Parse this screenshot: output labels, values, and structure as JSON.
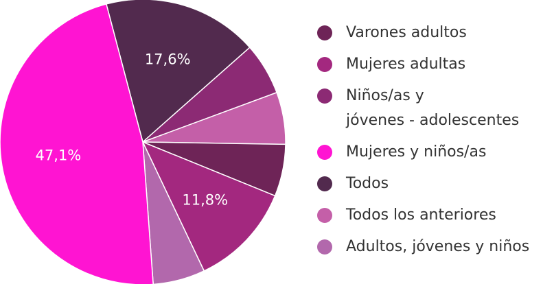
{
  "chart_data": {
    "type": "pie",
    "categories": [
      "Varones adultos",
      "Mujeres adultas",
      "Niños/as y\njóvenes - adolescentes",
      "Mujeres y niños/as",
      "Todos",
      "Todos los anteriores",
      "Adultos, jóvenes y niños"
    ],
    "values": [
      5.9,
      11.8,
      5.9,
      47.1,
      17.6,
      5.9,
      5.9
    ],
    "value_labels": [
      null,
      "11,8%",
      null,
      "47,1%",
      "17,6%",
      null,
      null
    ],
    "colors": [
      "#6e2457",
      "#a3287f",
      "#8c2a74",
      "#ff14d2",
      "#522a4e",
      "#c45fa8",
      "#b268ac"
    ],
    "legend": "right"
  }
}
